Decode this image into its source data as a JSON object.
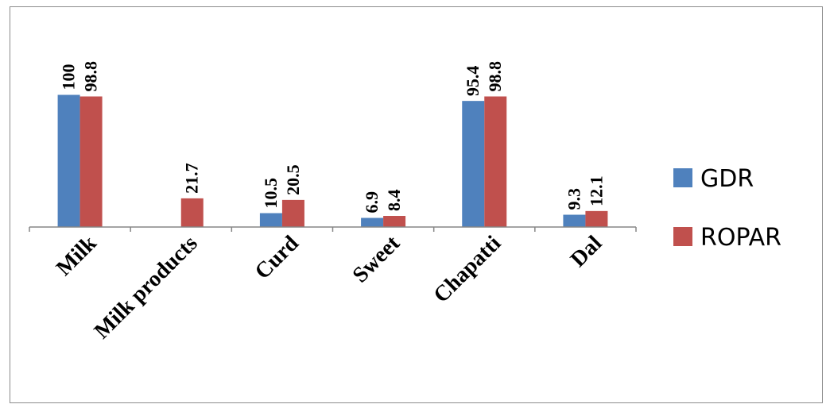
{
  "chart_data": {
    "type": "bar",
    "categories": [
      "Milk",
      "Milk products",
      "Curd",
      "Sweet",
      "Chapatti",
      "Dal"
    ],
    "series": [
      {
        "name": "GDR",
        "color": "#4f81bd",
        "values": [
          100,
          null,
          10.5,
          6.9,
          95.4,
          9.3
        ]
      },
      {
        "name": "ROPAR",
        "color": "#c0504d",
        "values": [
          98.8,
          21.7,
          20.5,
          8.4,
          98.8,
          12.1
        ]
      }
    ],
    "title": "",
    "xlabel": "",
    "ylabel": "",
    "legend_position": "right",
    "grid": false,
    "value_labels": true,
    "axis_color": "#868686"
  }
}
